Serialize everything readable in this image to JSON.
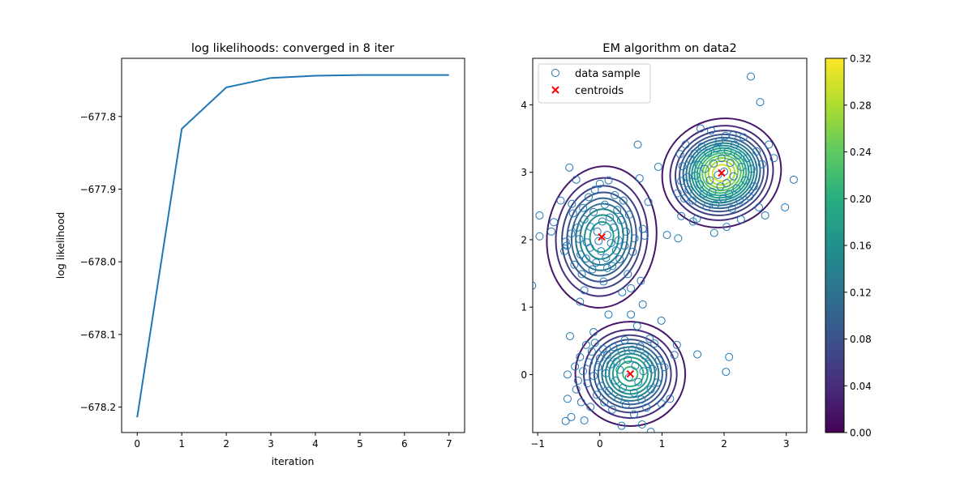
{
  "chart_data": [
    {
      "type": "line",
      "title": "log likelihoods: converged in 8 iter",
      "xlabel": "iteration",
      "ylabel": "log likelihood",
      "xlim": [
        -0.35,
        7.35
      ],
      "ylim": [
        -678.235,
        -677.72
      ],
      "xticks": [
        0,
        1,
        2,
        3,
        4,
        5,
        6,
        7
      ],
      "xtick_labels": [
        "0",
        "1",
        "2",
        "3",
        "4",
        "5",
        "6",
        "7"
      ],
      "yticks": [
        -677.8,
        -677.9,
        -678.0,
        -678.1,
        -678.2
      ],
      "ytick_labels": [
        "−677.8",
        "−677.9",
        "−678.0",
        "−678.1",
        "−678.2"
      ],
      "grid": false,
      "line_color": "#1f77b4",
      "x": [
        0,
        1,
        2,
        3,
        4,
        5,
        6,
        7
      ],
      "y": [
        -678.214,
        -677.817,
        -677.76,
        -677.747,
        -677.744,
        -677.743,
        -677.743,
        -677.743
      ]
    },
    {
      "type": "scatter",
      "title": "EM algorithm on data2",
      "xlim": [
        -1.08,
        3.33
      ],
      "ylim": [
        -0.86,
        4.69
      ],
      "xticks": [
        -1,
        0,
        1,
        2,
        3
      ],
      "xtick_labels": [
        "−1",
        "0",
        "1",
        "2",
        "3"
      ],
      "yticks": [
        0,
        1,
        2,
        3,
        4
      ],
      "ytick_labels": [
        "0",
        "1",
        "2",
        "3",
        "4"
      ],
      "grid": false,
      "legend": {
        "placement": "top-left",
        "entries": [
          {
            "label": "data sample",
            "marker": "open-circle",
            "color": "#1f77b4"
          },
          {
            "label": "centroids",
            "marker": "x",
            "color": "#ff0000"
          }
        ]
      },
      "centroids": [
        {
          "x": 0.03,
          "y": 2.04
        },
        {
          "x": 1.96,
          "y": 2.99
        },
        {
          "x": 0.49,
          "y": 0.01
        }
      ],
      "contour_components": [
        {
          "center": [
            0.03,
            2.04
          ],
          "sx": 0.41,
          "sy": 0.49,
          "rho": -0.1,
          "peak": 0.2
        },
        {
          "center": [
            1.96,
            2.99
          ],
          "sx": 0.41,
          "sy": 0.34,
          "rho": 0.3,
          "peak": 0.32
        },
        {
          "center": [
            0.49,
            0.01
          ],
          "sx": 0.4,
          "sy": 0.35,
          "rho": -0.05,
          "peak": 0.23
        }
      ],
      "contour_levels": [
        0.02,
        0.04,
        0.06,
        0.08,
        0.1,
        0.12,
        0.14,
        0.16,
        0.18,
        0.2,
        0.22,
        0.24,
        0.26,
        0.28,
        0.3
      ],
      "colorbar": {
        "min": 0.0,
        "max": 0.32,
        "ticks": [
          0.0,
          0.04,
          0.08,
          0.12,
          0.16,
          0.2,
          0.24,
          0.28,
          0.32
        ],
        "tick_labels": [
          "0.00",
          "0.04",
          "0.08",
          "0.12",
          "0.16",
          "0.20",
          "0.24",
          "0.28",
          "0.32"
        ],
        "colormap": "viridis"
      },
      "points": [
        [
          -1.09,
          1.32
        ],
        [
          -0.97,
          2.36
        ],
        [
          -0.97,
          2.05
        ],
        [
          -0.78,
          2.12
        ],
        [
          -0.74,
          2.26
        ],
        [
          -0.63,
          2.58
        ],
        [
          -0.57,
          1.83
        ],
        [
          -0.55,
          1.97
        ],
        [
          -0.53,
          1.91
        ],
        [
          -0.49,
          3.07
        ],
        [
          -0.45,
          2.53
        ],
        [
          -0.46,
          2.09
        ],
        [
          -0.43,
          2.39
        ],
        [
          -0.41,
          1.63
        ],
        [
          -0.38,
          2.89
        ],
        [
          -0.36,
          2.18
        ],
        [
          -0.33,
          2.01
        ],
        [
          -0.31,
          1.78
        ],
        [
          -0.29,
          1.49
        ],
        [
          -0.27,
          2.47
        ],
        [
          -0.25,
          2.3
        ],
        [
          -0.22,
          1.72
        ],
        [
          -0.21,
          1.96
        ],
        [
          -0.18,
          2.63
        ],
        [
          -0.16,
          1.88
        ],
        [
          -0.15,
          2.19
        ],
        [
          -0.12,
          1.56
        ],
        [
          -0.1,
          2.41
        ],
        [
          -0.08,
          2.74
        ],
        [
          -0.06,
          1.66
        ],
        [
          -0.04,
          2.12
        ],
        [
          -0.02,
          1.98
        ],
        [
          0.0,
          2.83
        ],
        [
          0.02,
          1.83
        ],
        [
          0.04,
          2.27
        ],
        [
          0.06,
          1.38
        ],
        [
          0.08,
          2.52
        ],
        [
          0.1,
          1.73
        ],
        [
          0.12,
          2.07
        ],
        [
          0.14,
          2.88
        ],
        [
          0.16,
          2.33
        ],
        [
          0.18,
          1.95
        ],
        [
          0.2,
          1.61
        ],
        [
          0.22,
          2.18
        ],
        [
          0.24,
          2.66
        ],
        [
          0.26,
          1.84
        ],
        [
          0.28,
          2.44
        ],
        [
          0.3,
          1.99
        ],
        [
          0.32,
          1.71
        ],
        [
          0.34,
          2.29
        ],
        [
          0.36,
          1.22
        ],
        [
          0.38,
          2.58
        ],
        [
          0.4,
          1.91
        ],
        [
          0.42,
          2.12
        ],
        [
          0.45,
          1.49
        ],
        [
          0.47,
          2.37
        ],
        [
          0.5,
          1.28
        ],
        [
          0.53,
          1.82
        ],
        [
          0.56,
          2.02
        ],
        [
          0.61,
          3.41
        ],
        [
          0.64,
          2.91
        ],
        [
          0.69,
          2.16
        ],
        [
          0.66,
          1.39
        ],
        [
          0.72,
          2.06
        ],
        [
          0.78,
          2.56
        ],
        [
          0.94,
          3.08
        ],
        [
          1.08,
          2.07
        ],
        [
          -0.32,
          1.08
        ],
        [
          -0.25,
          1.25
        ],
        [
          0.12,
          1.58
        ],
        [
          1.25,
          2.69
        ],
        [
          1.26,
          2.02
        ],
        [
          1.29,
          3.27
        ],
        [
          1.31,
          2.87
        ],
        [
          1.33,
          3.09
        ],
        [
          1.36,
          2.61
        ],
        [
          1.38,
          3.41
        ],
        [
          1.41,
          2.93
        ],
        [
          1.43,
          2.74
        ],
        [
          1.46,
          3.18
        ],
        [
          1.49,
          2.58
        ],
        [
          1.52,
          3.28
        ],
        [
          1.54,
          2.95
        ],
        [
          1.56,
          2.31
        ],
        [
          1.59,
          3.11
        ],
        [
          1.61,
          2.82
        ],
        [
          1.64,
          3.38
        ],
        [
          1.67,
          2.68
        ],
        [
          1.69,
          3.05
        ],
        [
          1.72,
          2.49
        ],
        [
          1.74,
          3.29
        ],
        [
          1.77,
          2.88
        ],
        [
          1.79,
          3.62
        ],
        [
          1.81,
          2.71
        ],
        [
          1.83,
          3.13
        ],
        [
          1.86,
          2.52
        ],
        [
          1.88,
          3.35
        ],
        [
          1.9,
          2.96
        ],
        [
          1.92,
          3.46
        ],
        [
          1.94,
          2.79
        ],
        [
          1.96,
          3.21
        ],
        [
          1.98,
          2.61
        ],
        [
          2.0,
          3.01
        ],
        [
          2.02,
          3.54
        ],
        [
          2.04,
          2.84
        ],
        [
          2.06,
          3.31
        ],
        [
          2.08,
          2.68
        ],
        [
          2.1,
          3.14
        ],
        [
          2.13,
          2.46
        ],
        [
          2.15,
          2.94
        ],
        [
          2.17,
          3.41
        ],
        [
          2.2,
          2.76
        ],
        [
          2.22,
          3.25
        ],
        [
          2.25,
          2.58
        ],
        [
          2.28,
          3.08
        ],
        [
          2.31,
          3.52
        ],
        [
          2.34,
          2.88
        ],
        [
          2.37,
          3.21
        ],
        [
          2.41,
          2.64
        ],
        [
          2.44,
          3.05
        ],
        [
          2.48,
          2.79
        ],
        [
          2.52,
          3.31
        ],
        [
          2.56,
          2.48
        ],
        [
          2.61,
          3.12
        ],
        [
          2.66,
          2.36
        ],
        [
          2.72,
          3.41
        ],
        [
          2.43,
          4.42
        ],
        [
          2.58,
          4.04
        ],
        [
          2.8,
          3.21
        ],
        [
          2.98,
          2.48
        ],
        [
          3.12,
          2.89
        ],
        [
          1.84,
          2.1
        ],
        [
          2.04,
          2.19
        ],
        [
          1.31,
          2.35
        ],
        [
          1.5,
          2.27
        ],
        [
          1.62,
          3.65
        ],
        [
          2.14,
          3.55
        ],
        [
          2.27,
          2.3
        ],
        [
          -0.55,
          -0.69
        ],
        [
          -0.52,
          -0.36
        ],
        [
          -0.52,
          0.0
        ],
        [
          -0.46,
          -0.63
        ],
        [
          -0.48,
          0.57
        ],
        [
          -0.4,
          0.12
        ],
        [
          -0.38,
          -0.22
        ],
        [
          -0.35,
          -0.09
        ],
        [
          -0.32,
          0.26
        ],
        [
          -0.3,
          -0.41
        ],
        [
          -0.27,
          0.05
        ],
        [
          -0.25,
          -0.68
        ],
        [
          -0.22,
          0.44
        ],
        [
          -0.2,
          -0.13
        ],
        [
          -0.18,
          0.18
        ],
        [
          -0.15,
          -0.48
        ],
        [
          -0.13,
          0.34
        ],
        [
          -0.1,
          -0.02
        ],
        [
          -0.08,
          0.47
        ],
        [
          -0.05,
          -0.3
        ],
        [
          -0.03,
          0.11
        ],
        [
          0.0,
          0.24
        ],
        [
          0.02,
          -0.17
        ],
        [
          0.05,
          0.38
        ],
        [
          0.07,
          -0.41
        ],
        [
          0.1,
          0.02
        ],
        [
          0.12,
          0.29
        ],
        [
          0.15,
          -0.24
        ],
        [
          0.17,
          0.15
        ],
        [
          0.2,
          -0.52
        ],
        [
          0.22,
          0.41
        ],
        [
          0.25,
          -0.09
        ],
        [
          0.27,
          0.19
        ],
        [
          0.3,
          -0.36
        ],
        [
          0.32,
          0.07
        ],
        [
          0.35,
          0.34
        ],
        [
          0.37,
          -0.2
        ],
        [
          0.4,
          0.51
        ],
        [
          0.42,
          -0.45
        ],
        [
          0.45,
          0.22
        ],
        [
          0.47,
          -0.04
        ],
        [
          0.5,
          0.89
        ],
        [
          0.52,
          0.37
        ],
        [
          0.55,
          -0.27
        ],
        [
          0.57,
          0.13
        ],
        [
          0.6,
          0.72
        ],
        [
          0.62,
          -0.11
        ],
        [
          0.65,
          0.42
        ],
        [
          0.67,
          -0.37
        ],
        [
          0.7,
          0.05
        ],
        [
          0.72,
          0.28
        ],
        [
          0.75,
          -0.49
        ],
        [
          0.77,
          0.16
        ],
        [
          0.8,
          0.53
        ],
        [
          0.82,
          -0.22
        ],
        [
          0.85,
          0.08
        ],
        [
          0.88,
          0.46
        ],
        [
          0.92,
          -0.12
        ],
        [
          0.95,
          0.21
        ],
        [
          0.99,
          -0.43
        ],
        [
          1.04,
          0.11
        ],
        [
          1.13,
          -0.36
        ],
        [
          1.2,
          0.29
        ],
        [
          1.24,
          0.44
        ],
        [
          1.57,
          0.3
        ],
        [
          2.03,
          0.04
        ],
        [
          2.08,
          0.26
        ],
        [
          0.69,
          1.04
        ],
        [
          0.99,
          0.8
        ],
        [
          0.14,
          0.89
        ],
        [
          0.35,
          -0.76
        ],
        [
          0.82,
          -0.85
        ],
        [
          0.68,
          -0.74
        ],
        [
          0.55,
          -0.59
        ],
        [
          -0.1,
          0.63
        ]
      ]
    }
  ]
}
